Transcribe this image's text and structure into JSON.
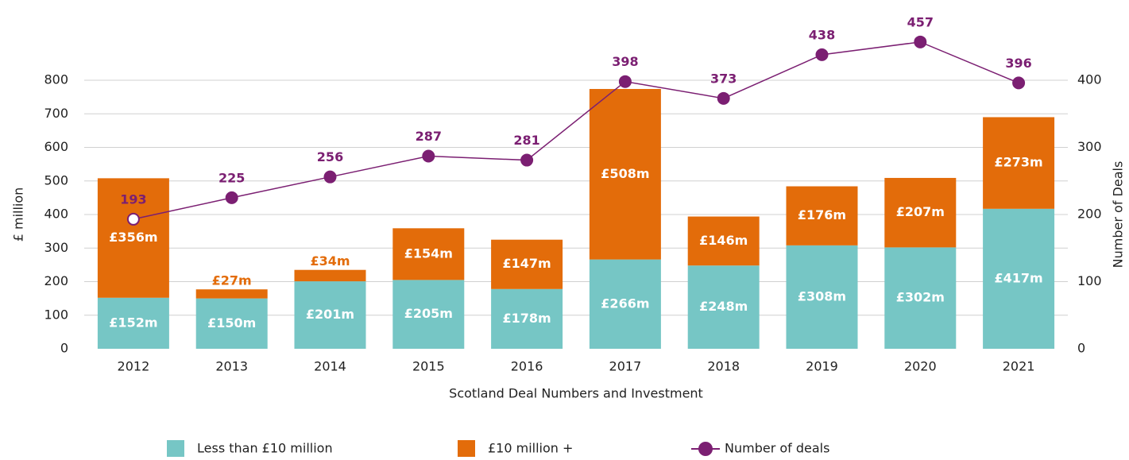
{
  "chart_data": {
    "type": "bar+line",
    "xlabel": "Scotland Deal Numbers and Investment",
    "ylabel": "£ million",
    "y2label": "Number of Deals",
    "categories": [
      "2012",
      "2013",
      "2014",
      "2015",
      "2016",
      "2017",
      "2018",
      "2019",
      "2020",
      "2021"
    ],
    "series": [
      {
        "name": "Less than £10 million",
        "color": "#76c6c5",
        "stack": true,
        "values": [
          152,
          150,
          201,
          205,
          178,
          266,
          248,
          308,
          302,
          417
        ],
        "value_labels": [
          "£152m",
          "£150m",
          "£201m",
          "£205m",
          "£178m",
          "£266m",
          "£248m",
          "£308m",
          "£302m",
          "£417m"
        ]
      },
      {
        "name": "£10 million +",
        "color": "#e36c0a",
        "stack": true,
        "values": [
          356,
          27,
          34,
          154,
          147,
          508,
          146,
          176,
          207,
          273
        ],
        "value_labels": [
          "£356m",
          "£27m",
          "£34m",
          "£154m",
          "£147m",
          "£508m",
          "£146m",
          "£176m",
          "£207m",
          "£273m"
        ]
      },
      {
        "name": "Number of deals",
        "color": "#7b1f72",
        "type": "line",
        "axis": "y2",
        "values": [
          193,
          225,
          256,
          287,
          281,
          398,
          373,
          438,
          457,
          396
        ]
      }
    ],
    "ylim": [
      0,
      800
    ],
    "yticks": [
      0,
      100,
      200,
      300,
      400,
      500,
      600,
      700,
      800
    ],
    "y2lim": [
      0,
      400
    ],
    "y2ticks": [
      0,
      100,
      200,
      300,
      400
    ],
    "grid": true,
    "legend": "bottom"
  }
}
